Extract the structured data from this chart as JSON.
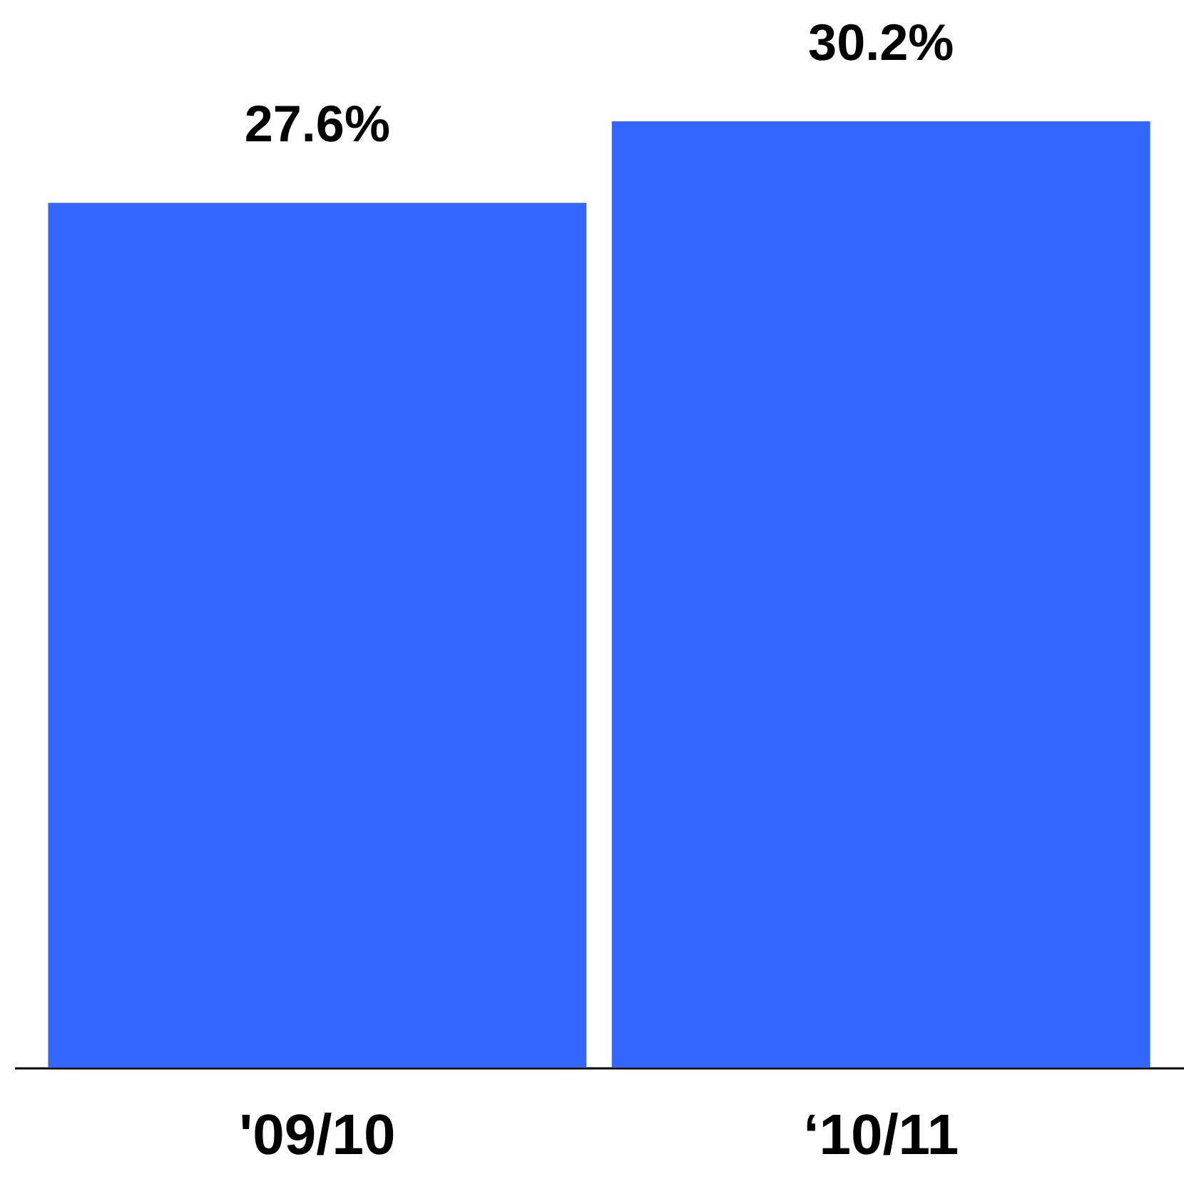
{
  "chart_data": {
    "type": "bar",
    "categories": [
      "'09/10",
      "‘10/11"
    ],
    "values": [
      27.6,
      30.2
    ],
    "value_labels": [
      "27.6%",
      "30.2%"
    ],
    "color": "#3366ff"
  }
}
